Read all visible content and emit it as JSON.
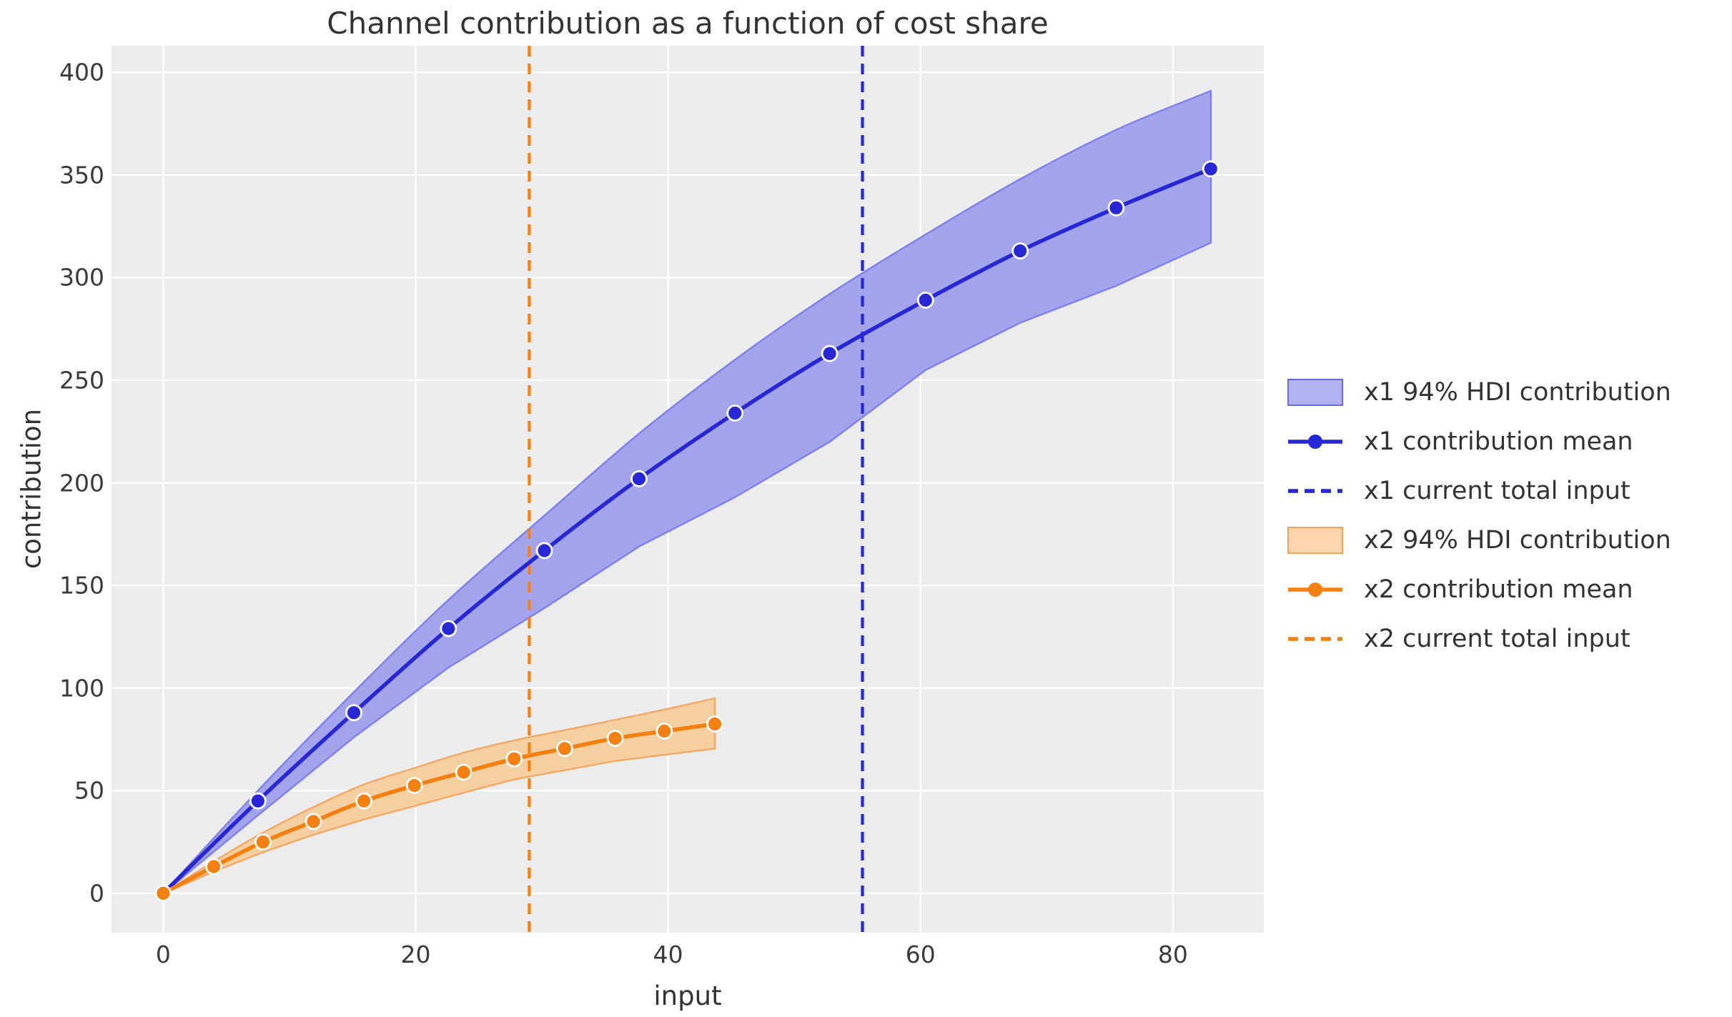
{
  "title": "Channel contribution as a function of cost share",
  "axes": {
    "xlabel": "input",
    "ylabel": "contribution"
  },
  "colors": {
    "background": "#ffffff",
    "plot_bg": "#ececec",
    "grid": "#ffffff",
    "text": "#333333",
    "x1_line": "#2727d8",
    "x1_band_fill": "#a4a4ed",
    "x1_band_edge": "#8080ef",
    "x1_legend_patch_fill": "#b2b2f1",
    "x2_line": "#f5800f",
    "x2_band_fill": "#f6cfa1",
    "x2_band_edge": "#f3a968",
    "x2_legend_patch_fill": "#fbd5ac",
    "marker_edge": "#ffffff"
  },
  "legend": {
    "items": [
      {
        "label": "x1 94% HDI contribution",
        "type": "patch",
        "fill": "#b2b2f1",
        "edge": "#6a6ae0"
      },
      {
        "label": "x1 contribution mean",
        "type": "line_marker",
        "color": "#2727d8"
      },
      {
        "label": "x1 current total input",
        "type": "dashed",
        "color": "#2727d8"
      },
      {
        "label": "x2 94% HDI contribution",
        "type": "patch",
        "fill": "#fbd5ac",
        "edge": "#f5a35c"
      },
      {
        "label": "x2 contribution mean",
        "type": "line_marker",
        "color": "#f5800f"
      },
      {
        "label": "x2 current total input",
        "type": "dashed",
        "color": "#f5800f"
      }
    ]
  },
  "chart_data": {
    "type": "line",
    "title": "Channel contribution as a function of cost share",
    "xlabel": "input",
    "ylabel": "contribution",
    "xlim": [
      -4.1,
      87.2
    ],
    "ylim": [
      -19.2,
      413
    ],
    "x_ticks": [
      0,
      20,
      40,
      60,
      80
    ],
    "y_ticks": [
      0,
      50,
      100,
      150,
      200,
      250,
      300,
      350,
      400
    ],
    "grid": true,
    "legend_position": "center right",
    "series": [
      {
        "name": "x1 94% HDI contribution",
        "type": "band",
        "x": [
          0,
          7.5,
          15.1,
          22.6,
          30.2,
          37.7,
          45.3,
          52.8,
          60.4,
          67.9,
          75.5,
          83
        ],
        "lower": [
          0,
          38,
          76,
          110,
          139,
          169,
          193,
          220,
          255,
          278,
          296,
          317
        ],
        "upper": [
          0,
          50,
          98,
          143,
          184,
          224,
          260,
          292,
          321,
          348,
          372,
          391
        ]
      },
      {
        "name": "x1 contribution mean",
        "type": "line_markers",
        "x": [
          0,
          7.5,
          15.1,
          22.6,
          30.2,
          37.7,
          45.3,
          52.8,
          60.4,
          67.9,
          75.5,
          83
        ],
        "y": [
          0,
          45,
          88,
          129,
          167,
          202,
          234,
          263,
          289,
          313,
          334,
          353
        ]
      },
      {
        "name": "x1 current total input",
        "type": "vline",
        "x": 55.4
      },
      {
        "name": "x2 94% HDI contribution",
        "type": "band",
        "x": [
          0,
          4,
          7.9,
          11.9,
          15.9,
          19.9,
          23.8,
          27.8,
          31.8,
          35.8,
          39.7,
          43.7
        ],
        "lower": [
          0,
          10.5,
          20,
          28.5,
          36,
          42.5,
          49,
          55.5,
          60,
          64.5,
          67.5,
          70.5
        ],
        "upper": [
          0,
          15.5,
          29.5,
          42,
          53,
          61,
          68.5,
          74.5,
          79.5,
          84.5,
          89.5,
          95
        ]
      },
      {
        "name": "x2 contribution mean",
        "type": "line_markers",
        "x": [
          0,
          4,
          7.9,
          11.9,
          15.9,
          19.9,
          23.8,
          27.8,
          31.8,
          35.8,
          39.7,
          43.7
        ],
        "y": [
          0,
          13,
          25,
          35,
          45,
          52.5,
          59,
          65.5,
          70.5,
          75.5,
          79,
          82.5
        ]
      },
      {
        "name": "x2 current total input",
        "type": "vline",
        "x": 29
      }
    ]
  }
}
